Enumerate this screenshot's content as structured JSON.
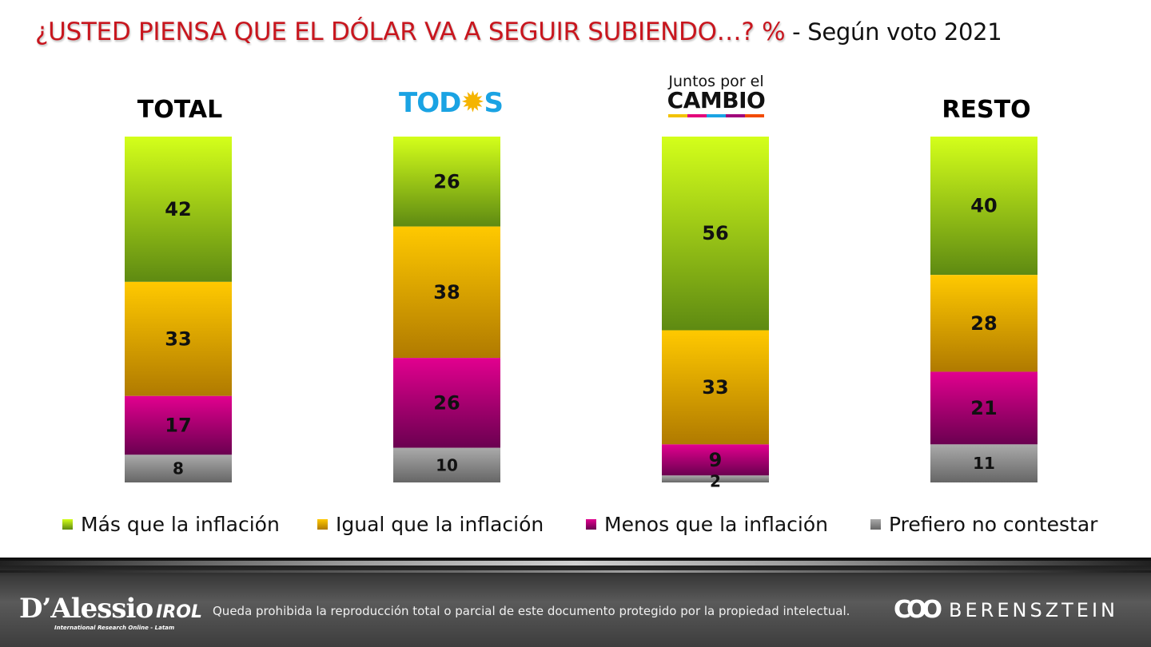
{
  "title": {
    "main": "¿USTED PIENSA QUE EL DÓLAR VA A SEGUIR SUBIENDO…? %",
    "sub": " - Según voto 2021"
  },
  "headers": {
    "total": "TOTAL",
    "todos_left": "TOD",
    "todos_right": "S",
    "jxc_small": "Juntos por el",
    "jxc_big": "CAMBIO",
    "resto": "RESTO"
  },
  "colors": {
    "mas": "#9bcf0a",
    "igual": "#f0b000",
    "menos": "#b5007f",
    "prefiero": "#8c8c8c"
  },
  "chart_data": {
    "type": "bar",
    "stacked": true,
    "unit": "%",
    "categories": [
      "TOTAL",
      "TODOS",
      "Juntos por el CAMBIO",
      "RESTO"
    ],
    "series": [
      {
        "name": "Más que la inflación",
        "values": [
          42,
          26,
          56,
          40
        ]
      },
      {
        "name": "Igual que la inflación",
        "values": [
          33,
          38,
          33,
          28
        ]
      },
      {
        "name": "Menos que la inflación",
        "values": [
          17,
          26,
          9,
          21
        ]
      },
      {
        "name": "Prefiero no contestar",
        "values": [
          8,
          10,
          2,
          11
        ]
      }
    ],
    "legend_position": "bottom",
    "grid": false
  },
  "footer": {
    "brand_left": "D’Alessio",
    "brand_left_suffix": "IROL",
    "brand_left_tagline": "International Research Online - Latam",
    "disclaimer": "Queda prohibida la reproducción total o parcial de este documento protegido por la propiedad intelectual.",
    "brand_right": "BERENSZTEIN"
  }
}
